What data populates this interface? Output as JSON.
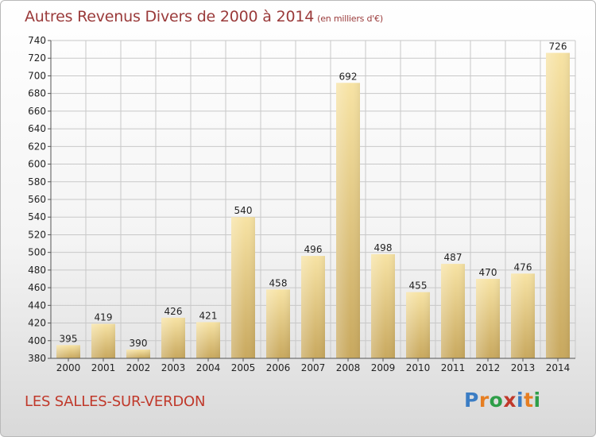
{
  "header": {
    "title": "Autres Revenus Divers de 2000 à 2014",
    "unit": "(en milliers d'€)"
  },
  "footer": {
    "commune": "LES SALLES-SUR-VERDON",
    "logo": [
      "P",
      "r",
      "o",
      "x",
      "i",
      "t",
      "i"
    ],
    "logo_colors": [
      "#3b7dc4",
      "#e67e22",
      "#2e9e48",
      "#c0392b",
      "#3b7dc4",
      "#e67e22",
      "#2e9e48"
    ]
  },
  "colors": {
    "bar_top": "#f7e3a4",
    "bar_bottom": "#c8a85e",
    "grid": "#c8c8c8",
    "axis_text": "#222222",
    "title": "#9a3a3a",
    "commune": "#c0392b"
  },
  "chart_data": {
    "type": "bar",
    "title": "Autres Revenus Divers de 2000 à 2014",
    "categories": [
      "2000",
      "2001",
      "2002",
      "2003",
      "2004",
      "2005",
      "2006",
      "2007",
      "2008",
      "2009",
      "2010",
      "2011",
      "2012",
      "2013",
      "2014"
    ],
    "values": [
      395,
      419,
      390,
      426,
      421,
      540,
      458,
      496,
      692,
      498,
      455,
      487,
      470,
      476,
      726
    ],
    "ylim": [
      380,
      740
    ],
    "yticks": [
      380,
      400,
      420,
      440,
      460,
      480,
      500,
      520,
      540,
      560,
      580,
      600,
      620,
      640,
      660,
      680,
      700,
      720,
      740
    ],
    "xlabel": "",
    "ylabel": "",
    "grid": true,
    "data_labels": true
  }
}
